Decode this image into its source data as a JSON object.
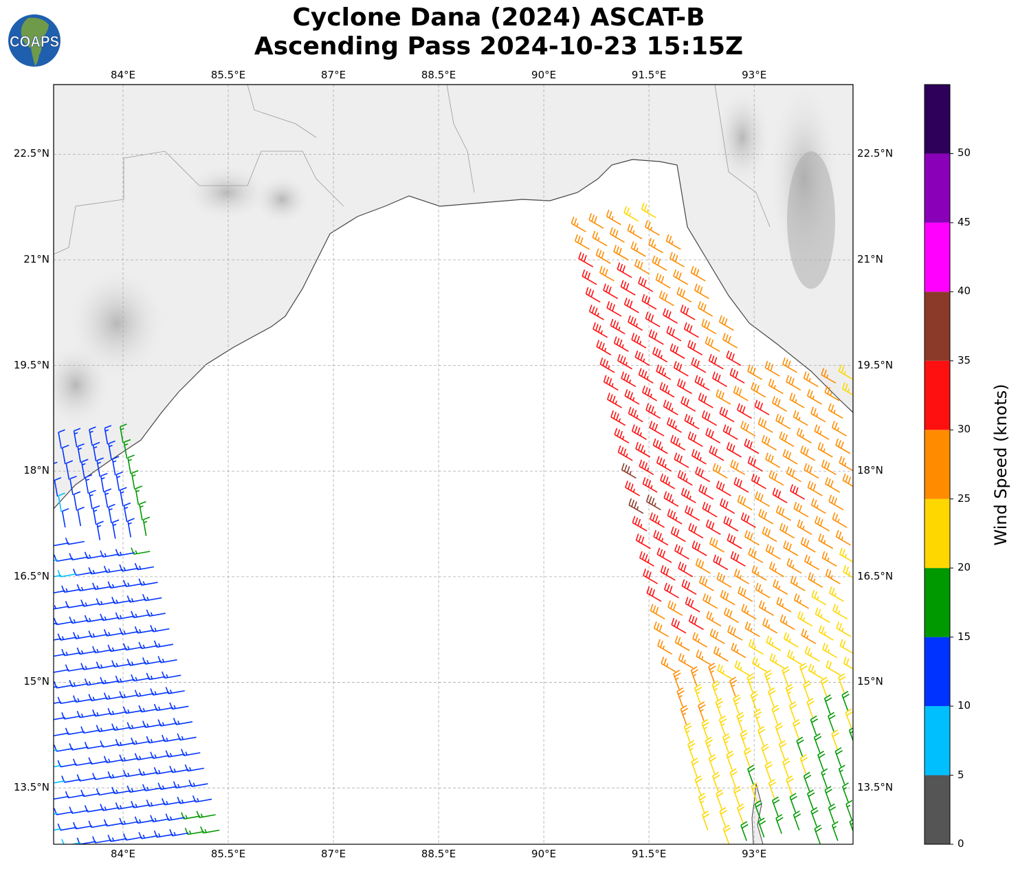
{
  "title_line1": "Cyclone Dana (2024) ASCAT-B",
  "title_line2": "Ascending Pass 2024-10-23 15:15Z",
  "logo_text": "COAPS",
  "map": {
    "lon_range": [
      83.01,
      94.41
    ],
    "lat_range": [
      12.7,
      23.49
    ],
    "lon_ticks": [
      {
        "v": 84,
        "label": "84°E"
      },
      {
        "v": 85.5,
        "label": "85.5°E"
      },
      {
        "v": 87,
        "label": "87°E"
      },
      {
        "v": 88.5,
        "label": "88.5°E"
      },
      {
        "v": 90,
        "label": "90°E"
      },
      {
        "v": 91.5,
        "label": "91.5°E"
      },
      {
        "v": 93,
        "label": "93°E"
      }
    ],
    "lat_ticks": [
      {
        "v": 22.5,
        "label": "22.5°N"
      },
      {
        "v": 21,
        "label": "21°N"
      },
      {
        "v": 19.5,
        "label": "19.5°N"
      },
      {
        "v": 18,
        "label": "18°N"
      },
      {
        "v": 16.5,
        "label": "16.5°N"
      },
      {
        "v": 15,
        "label": "15°N"
      },
      {
        "v": 13.5,
        "label": "13.5°N"
      }
    ]
  },
  "colorbar": {
    "label": "Wind Speed (knots)",
    "levels": [
      0,
      5,
      10,
      15,
      20,
      25,
      30,
      35,
      40,
      45,
      50,
      55
    ],
    "tick_labels": [
      "0",
      "5",
      "10",
      "15",
      "20",
      "25",
      "30",
      "35",
      "40",
      "45",
      "50"
    ],
    "colors": [
      "#555555",
      "#00bfff",
      "#0033ff",
      "#009900",
      "#ffd700",
      "#ff8c00",
      "#ff1010",
      "#8b3a2a",
      "#ff00ff",
      "#8a00b8",
      "#2e0059"
    ]
  }
}
